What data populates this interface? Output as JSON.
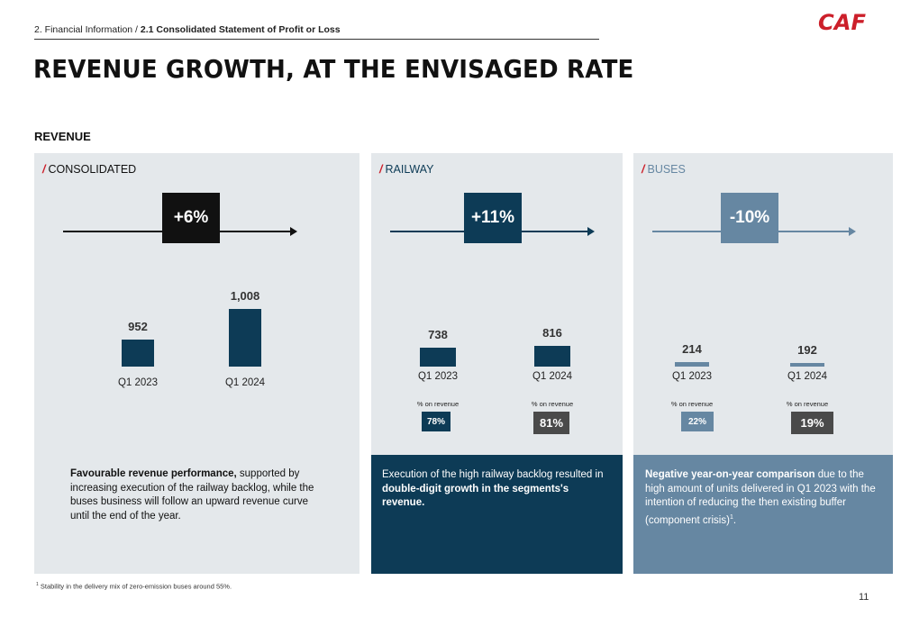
{
  "breadcrumb": {
    "section": "2. Financial Information /",
    "current": "2.1 Consolidated Statement of Profit or Loss"
  },
  "page_title": "REVENUE GROWTH, AT THE ENVISAGED RATE",
  "section_label": "REVENUE",
  "logo_text": "CAF",
  "colors": {
    "accent": "#cc1f2a",
    "consolidated": "#0d3b56",
    "railway": "#0d3b56",
    "buses": "#6687a2",
    "dark_box": "#111111"
  },
  "panels": {
    "consolidated": {
      "title": "CONSOLIDATED",
      "growth": "+6%",
      "description": {
        "bold": "Favourable revenue performance,",
        "rest": " supported by increasing execution of the railway backlog, while the buses business will follow an upward revenue curve until the end of the year."
      }
    },
    "railway": {
      "title": "RAILWAY",
      "growth": "+11%",
      "description": {
        "pre": "Execution of the high railway backlog resulted in ",
        "bold": "double-digit growth in the segments's revenue."
      }
    },
    "buses": {
      "title": "BUSES",
      "growth": "-10%",
      "description": {
        "bold": "Negative year-on-year comparison",
        "rest": " due to the high amount of units delivered in Q1 2023 with the intention of reducing the then existing buffer (component crisis)",
        "sup": "1",
        "end": "."
      }
    }
  },
  "chart_data": [
    {
      "type": "bar",
      "title": "CONSOLIDATED",
      "categories": [
        "Q1 2023",
        "Q1 2024"
      ],
      "values": [
        952,
        1008
      ],
      "value_labels": [
        "952",
        "1,008"
      ],
      "growth": "+6%"
    },
    {
      "type": "bar",
      "title": "RAILWAY",
      "categories": [
        "Q1 2023",
        "Q1 2024"
      ],
      "values": [
        738,
        816
      ],
      "value_labels": [
        "738",
        "816"
      ],
      "growth": "+11%",
      "share_label": "% on revenue",
      "share_of_revenue": [
        "78%",
        "81%"
      ]
    },
    {
      "type": "bar",
      "title": "BUSES",
      "categories": [
        "Q1 2023",
        "Q1 2024"
      ],
      "values": [
        214,
        192
      ],
      "value_labels": [
        "214",
        "192"
      ],
      "growth": "-10%",
      "share_label": "% on revenue",
      "share_of_revenue": [
        "22%",
        "19%"
      ]
    }
  ],
  "footnote": {
    "sup": "1",
    "text": "Stability in the delivery mix of zero-emission buses around 55%."
  },
  "page_number": "11"
}
